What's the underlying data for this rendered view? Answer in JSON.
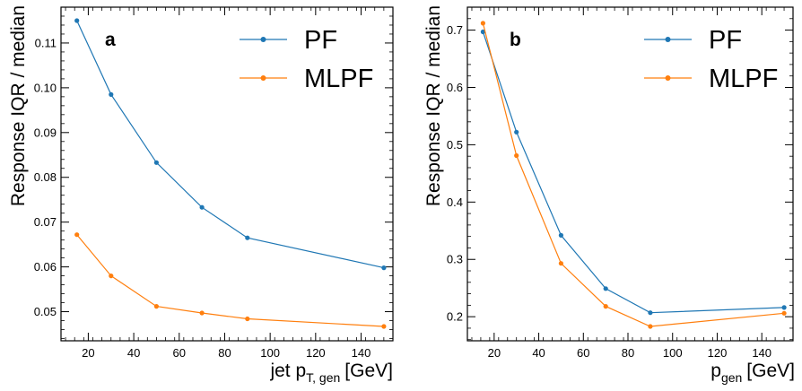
{
  "chart_data": [
    {
      "type": "line",
      "panel": "a",
      "xlabel": {
        "main": "jet p",
        "sub": "T, gen",
        "unit": "[GeV]"
      },
      "ylabel": "Response IQR / median",
      "xlim": [
        8,
        154
      ],
      "ylim": [
        0.0435,
        0.118
      ],
      "xticks": [
        20,
        40,
        60,
        80,
        100,
        120,
        140
      ],
      "yticks": [
        0.05,
        0.06,
        0.07,
        0.08,
        0.09,
        0.1,
        0.11
      ],
      "ytick_labels": [
        "0.05",
        "0.06",
        "0.07",
        "0.08",
        "0.09",
        "0.10",
        "0.11"
      ],
      "legend_position": "top-right",
      "x": [
        15,
        30,
        50,
        70,
        90,
        150
      ],
      "series": [
        {
          "name": "PF",
          "color": "#1f77b4",
          "values": [
            0.115,
            0.0985,
            0.0833,
            0.0733,
            0.0665,
            0.0598
          ]
        },
        {
          "name": "MLPF",
          "color": "#ff7f0e",
          "values": [
            0.0672,
            0.058,
            0.0512,
            0.0497,
            0.0484,
            0.0467
          ]
        }
      ]
    },
    {
      "type": "line",
      "panel": "b",
      "xlabel": {
        "main": "p",
        "sub": "gen",
        "unit": "[GeV]"
      },
      "ylabel": "Response IQR / median",
      "xlim": [
        8,
        154
      ],
      "ylim": [
        0.158,
        0.74
      ],
      "xticks": [
        20,
        40,
        60,
        80,
        100,
        120,
        140
      ],
      "yticks": [
        0.2,
        0.3,
        0.4,
        0.5,
        0.6,
        0.7
      ],
      "ytick_labels": [
        "0.2",
        "0.3",
        "0.4",
        "0.5",
        "0.6",
        "0.7"
      ],
      "legend_position": "top-right",
      "x": [
        15,
        30,
        50,
        70,
        90,
        150
      ],
      "series": [
        {
          "name": "PF",
          "color": "#1f77b4",
          "values": [
            0.697,
            0.522,
            0.342,
            0.249,
            0.207,
            0.216
          ]
        },
        {
          "name": "MLPF",
          "color": "#ff7f0e",
          "values": [
            0.712,
            0.481,
            0.293,
            0.218,
            0.183,
            0.206
          ]
        }
      ]
    }
  ]
}
